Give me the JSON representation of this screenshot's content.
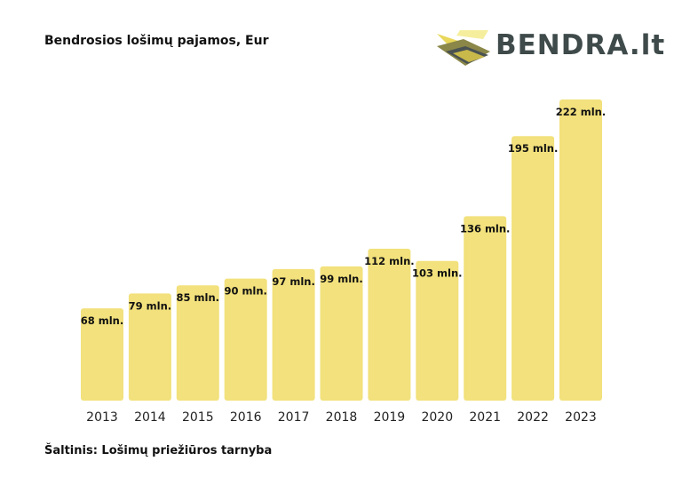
{
  "chart_data": {
    "type": "bar",
    "title": "Bendrosios lošimų pajamos, Eur",
    "categories": [
      "2013",
      "2014",
      "2015",
      "2016",
      "2017",
      "2018",
      "2019",
      "2020",
      "2021",
      "2022",
      "2023"
    ],
    "values": [
      68,
      79,
      85,
      90,
      97,
      99,
      112,
      103,
      136,
      195,
      222
    ],
    "data_labels": [
      "68 mln.",
      "79 mln.",
      "85 mln.",
      "90 mln.",
      "97 mln.",
      "99 mln.",
      "112 mln.",
      "103 mln.",
      "136 mln.",
      "195 mln.",
      "222 mln."
    ],
    "xlabel": "",
    "ylabel": "",
    "ylim": [
      0,
      222
    ],
    "grid": false,
    "bar_color": "#f2e17c"
  },
  "logo": {
    "text": "BENDRA.lt",
    "icon": "bendra-logo-icon",
    "colors": {
      "text": "#3f4a4a",
      "dark": "#4a5252",
      "olive": "#8a8748",
      "yellow": "#e8d75a",
      "light": "#f5ee9c"
    }
  },
  "source": "Šaltinis: Lošimų priežiūros tarnyba"
}
